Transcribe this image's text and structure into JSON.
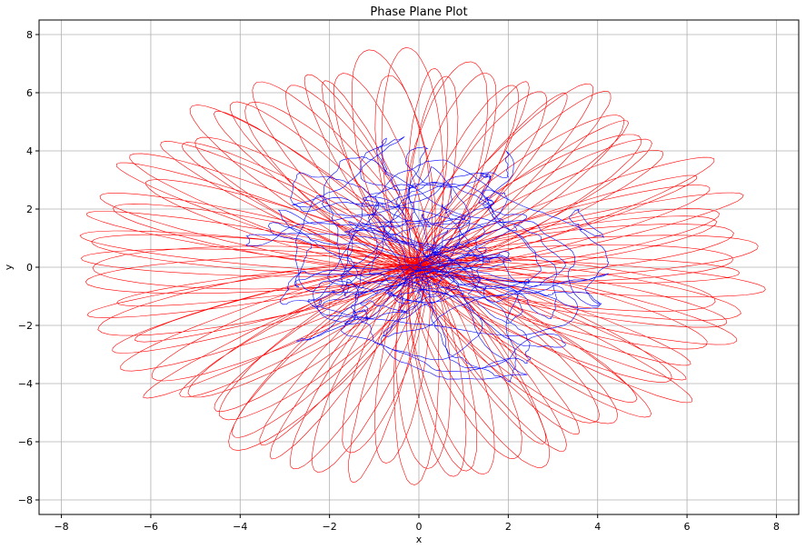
{
  "chart_data": {
    "type": "line",
    "title": "Phase Plane Plot",
    "xlabel": "x",
    "ylabel": "y",
    "xlim": [
      -8.5,
      8.5
    ],
    "ylim": [
      -8.5,
      8.5
    ],
    "xticks": [
      -8,
      -6,
      -4,
      -2,
      0,
      2,
      4,
      6,
      8
    ],
    "yticks": [
      -8,
      -6,
      -4,
      -2,
      0,
      2,
      4,
      6,
      8
    ],
    "xtick_labels": [
      "−8",
      "−6",
      "−4",
      "−2",
      "0",
      "2",
      "4",
      "6",
      "8"
    ],
    "ytick_labels": [
      "−8",
      "−6",
      "−4",
      "−2",
      "0",
      "2",
      "4",
      "6",
      "8"
    ],
    "grid": true,
    "series": [
      {
        "color": "#ff0000",
        "shape": "rosette",
        "extent_x": [
          -7.8,
          7.8
        ],
        "extent_y": [
          -7.6,
          7.6
        ],
        "petal_count": 96
      },
      {
        "color": "#0000ff",
        "shape": "tangle",
        "extent_x": [
          -4.4,
          4.1
        ],
        "extent_y": [
          -4.4,
          4.6
        ]
      }
    ]
  }
}
